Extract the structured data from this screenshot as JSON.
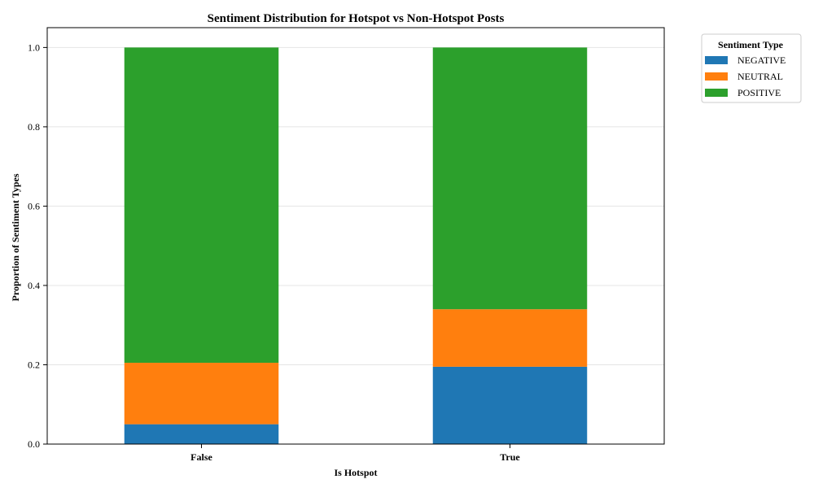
{
  "chart_data": {
    "type": "bar",
    "stacked": true,
    "title": "Sentiment Distribution for Hotspot vs Non-Hotspot Posts",
    "xlabel": "Is Hotspot",
    "ylabel": "Proportion of Sentiment Types",
    "categories": [
      "False",
      "True"
    ],
    "ylim": [
      0,
      1.05
    ],
    "yticks": [
      0.0,
      0.2,
      0.4,
      0.6,
      0.8,
      1.0
    ],
    "ytick_labels": [
      "0.0",
      "0.2",
      "0.4",
      "0.6",
      "0.8",
      "1.0"
    ],
    "grid": true,
    "legend": {
      "title": "Sentiment Type",
      "placement": "outside-top-right"
    },
    "series": [
      {
        "name": "NEGATIVE",
        "color": "#1f77b4",
        "values": [
          0.05,
          0.195
        ]
      },
      {
        "name": "NEUTRAL",
        "color": "#ff7f0e",
        "values": [
          0.155,
          0.145
        ]
      },
      {
        "name": "POSITIVE",
        "color": "#2ca02c",
        "values": [
          0.795,
          0.66
        ]
      }
    ]
  }
}
